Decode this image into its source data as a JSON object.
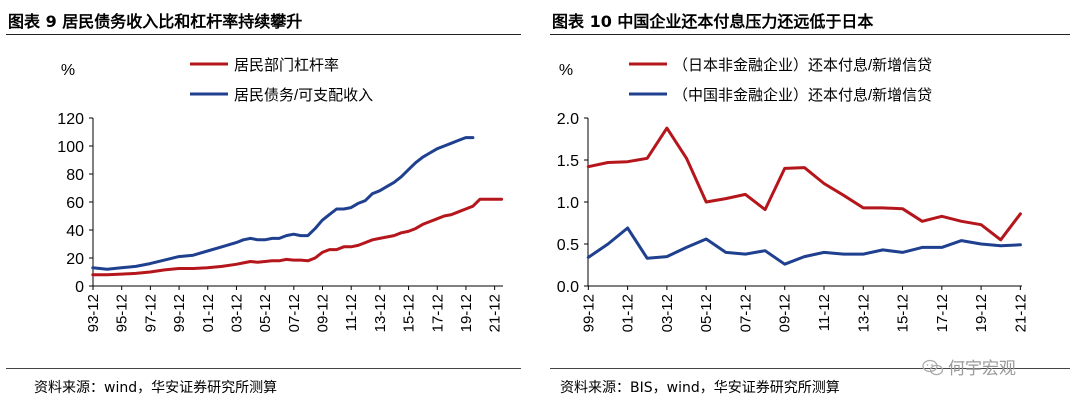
{
  "charts": [
    {
      "title": "图表 9 居民债务收入比和杠杆率持续攀升",
      "source": "资料来源：wind，华安证券研究所测算",
      "chart_data": {
        "type": "line",
        "ylabel": "%",
        "ylim": [
          0,
          120
        ],
        "yticks": [
          "0",
          "20",
          "40",
          "60",
          "80",
          "100",
          "120"
        ],
        "x_start": 1993.917,
        "x_end": 2022.5,
        "xtick_labels": [
          "93-12",
          "95-12",
          "97-12",
          "99-12",
          "01-12",
          "03-12",
          "05-12",
          "07-12",
          "09-12",
          "11-12",
          "13-12",
          "15-12",
          "17-12",
          "19-12",
          "21-12"
        ],
        "xtick_years": [
          1993.917,
          1995.917,
          1997.917,
          1999.917,
          2001.917,
          2003.917,
          2005.917,
          2007.917,
          2009.917,
          2011.917,
          2013.917,
          2015.917,
          2017.917,
          2019.917,
          2021.917
        ],
        "series": [
          {
            "name": "居民部门杠杆率",
            "color": "#b5161b",
            "x": [
              1993.9,
              1994.9,
              1995.9,
              1996.9,
              1997.9,
              1998.9,
              1999.9,
              2000.9,
              2001.9,
              2002.9,
              2003.9,
              2004.4,
              2004.9,
              2005.4,
              2005.9,
              2006.4,
              2006.9,
              2007.4,
              2007.9,
              2008.4,
              2008.9,
              2009.4,
              2009.9,
              2010.4,
              2010.9,
              2011.4,
              2011.9,
              2012.4,
              2012.9,
              2013.4,
              2013.9,
              2014.4,
              2014.9,
              2015.4,
              2015.9,
              2016.4,
              2016.9,
              2017.4,
              2017.9,
              2018.4,
              2018.9,
              2019.4,
              2019.9,
              2020.4,
              2020.9,
              2021.4,
              2021.9,
              2022.4
            ],
            "values": [
              8,
              8,
              8.5,
              9,
              10,
              11.5,
              12.5,
              12.5,
              13,
              14,
              15.5,
              16.5,
              17.5,
              17,
              17.5,
              18,
              18,
              19,
              18.5,
              18.5,
              18,
              20,
              24,
              26,
              26,
              28,
              28,
              29,
              31,
              33,
              34,
              35,
              36,
              38,
              39,
              41,
              44,
              46,
              48,
              50,
              51,
              53,
              55,
              57,
              62,
              62,
              62,
              62
            ]
          },
          {
            "name": "居民债务/可支配收入",
            "color": "#1f3f8f",
            "x": [
              1993.9,
              1994.9,
              1995.9,
              1996.9,
              1997.9,
              1998.9,
              1999.9,
              2000.9,
              2001.9,
              2002.9,
              2003.9,
              2004.4,
              2004.9,
              2005.4,
              2005.9,
              2006.4,
              2006.9,
              2007.4,
              2007.9,
              2008.4,
              2008.9,
              2009.4,
              2009.9,
              2010.4,
              2010.9,
              2011.4,
              2011.9,
              2012.4,
              2012.9,
              2013.4,
              2013.9,
              2014.4,
              2014.9,
              2015.4,
              2015.9,
              2016.4,
              2016.9,
              2017.4,
              2017.9,
              2018.4,
              2018.9,
              2019.4,
              2019.9,
              2020.4
            ],
            "values": [
              13,
              12,
              13,
              14,
              16,
              18.5,
              21,
              22,
              25,
              28,
              31,
              33,
              34,
              33,
              33,
              34,
              34,
              36,
              37,
              36,
              36,
              41,
              47,
              51,
              55,
              55,
              56,
              59,
              61,
              66,
              68,
              71,
              74,
              78,
              83,
              88,
              92,
              95,
              98,
              100,
              102,
              104,
              106,
              106
            ]
          }
        ]
      }
    },
    {
      "title": "图表 10 中国企业还本付息压力还远低于日本",
      "source": "资料来源：BIS，wind，华安证券研究所测算",
      "chart_data": {
        "type": "line",
        "ylabel": "%",
        "ylim": [
          0,
          2.0
        ],
        "yticks": [
          "0.0",
          "0.5",
          "1.0",
          "1.5",
          "2.0"
        ],
        "x_start": 1999.9,
        "x_end": 2022.0,
        "xtick_labels": [
          "99-12",
          "01-12",
          "03-12",
          "05-12",
          "07-12",
          "09-12",
          "11-12",
          "13-12",
          "15-12",
          "17-12",
          "19-12",
          "21-12"
        ],
        "xtick_years": [
          1999.917,
          2001.917,
          2003.917,
          2005.917,
          2007.917,
          2009.917,
          2011.917,
          2013.917,
          2015.917,
          2017.917,
          2019.917,
          2021.917
        ],
        "series": [
          {
            "name": "（日本非金融企业）还本付息/新增信贷",
            "color": "#b5161b",
            "x": [
              1999.917,
              2000.917,
              2001.917,
              2002.917,
              2003.917,
              2004.917,
              2005.917,
              2006.917,
              2007.917,
              2008.917,
              2009.917,
              2010.917,
              2011.917,
              2012.917,
              2013.917,
              2014.917,
              2015.917,
              2016.917,
              2017.917,
              2018.917,
              2019.917,
              2020.917,
              2021.917
            ],
            "values": [
              1.42,
              1.47,
              1.48,
              1.52,
              1.88,
              1.52,
              1.0,
              1.04,
              1.09,
              0.91,
              1.4,
              1.41,
              1.22,
              1.08,
              0.93,
              0.93,
              0.92,
              0.77,
              0.83,
              0.77,
              0.73,
              0.55,
              0.86
            ]
          },
          {
            "name": "（中国非金融企业）还本付息/新增信贷",
            "color": "#1f3f8f",
            "x": [
              1999.917,
              2000.917,
              2001.917,
              2002.917,
              2003.917,
              2004.917,
              2005.917,
              2006.917,
              2007.917,
              2008.917,
              2009.917,
              2010.917,
              2011.917,
              2012.917,
              2013.917,
              2014.917,
              2015.917,
              2016.917,
              2017.917,
              2018.917,
              2019.917,
              2020.917,
              2021.917
            ],
            "values": [
              0.34,
              0.5,
              0.69,
              0.33,
              0.35,
              0.46,
              0.56,
              0.4,
              0.38,
              0.42,
              0.26,
              0.35,
              0.4,
              0.38,
              0.38,
              0.43,
              0.4,
              0.46,
              0.46,
              0.54,
              0.5,
              0.48,
              0.49
            ]
          }
        ]
      }
    }
  ],
  "watermark": "何宇宏观",
  "watermark_icon": "wechat-icon"
}
